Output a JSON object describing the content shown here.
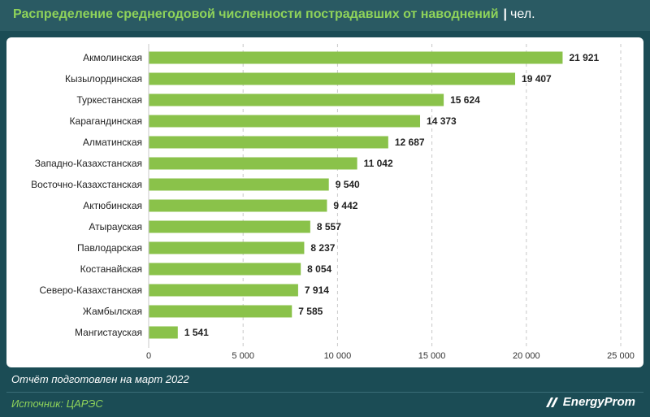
{
  "header": {
    "title": "Распределение среднегодовой численности пострадавших от наводнений",
    "separator": "|",
    "unit": "чел."
  },
  "footer": {
    "report_note": "Отчёт подготовлен на март 2022",
    "source": "Источник: ЦАРЭС",
    "brand": "EnergyProm"
  },
  "colors": {
    "bar": "#8ac24a",
    "header_bg": "#1b4c55",
    "title_accent": "#8fd35a",
    "grid": "#c8c8c8"
  },
  "chart_data": {
    "type": "bar",
    "orientation": "horizontal",
    "title": "Распределение среднегодовой численности пострадавших от наводнений",
    "xlabel": "",
    "ylabel": "",
    "xlim": [
      0,
      25000
    ],
    "grid": true,
    "categories": [
      "Акмолинская",
      "Кызылординская",
      "Туркестанская",
      "Карагандинская",
      "Алматинская",
      "Западно-Казахстанская",
      "Восточно-Казахстанская",
      "Актюбинская",
      "Атырауская",
      "Павлодарская",
      "Костанайская",
      "Северо-Казахстанская",
      "Жамбылская",
      "Мангистауская"
    ],
    "values": [
      21921,
      19407,
      15624,
      14373,
      12687,
      11042,
      9540,
      9442,
      8557,
      8237,
      8054,
      7914,
      7585,
      1541
    ],
    "value_labels": [
      "21 921",
      "19 407",
      "15 624",
      "14 373",
      "12 687",
      "11 042",
      "9 540",
      "9 442",
      "8 557",
      "8 237",
      "8 054",
      "7 914",
      "7 585",
      "1 541"
    ],
    "ticks": [
      0,
      5000,
      10000,
      15000,
      20000,
      25000
    ],
    "tick_labels": [
      "0",
      "5 000",
      "10 000",
      "15 000",
      "20 000",
      "25 000"
    ]
  }
}
